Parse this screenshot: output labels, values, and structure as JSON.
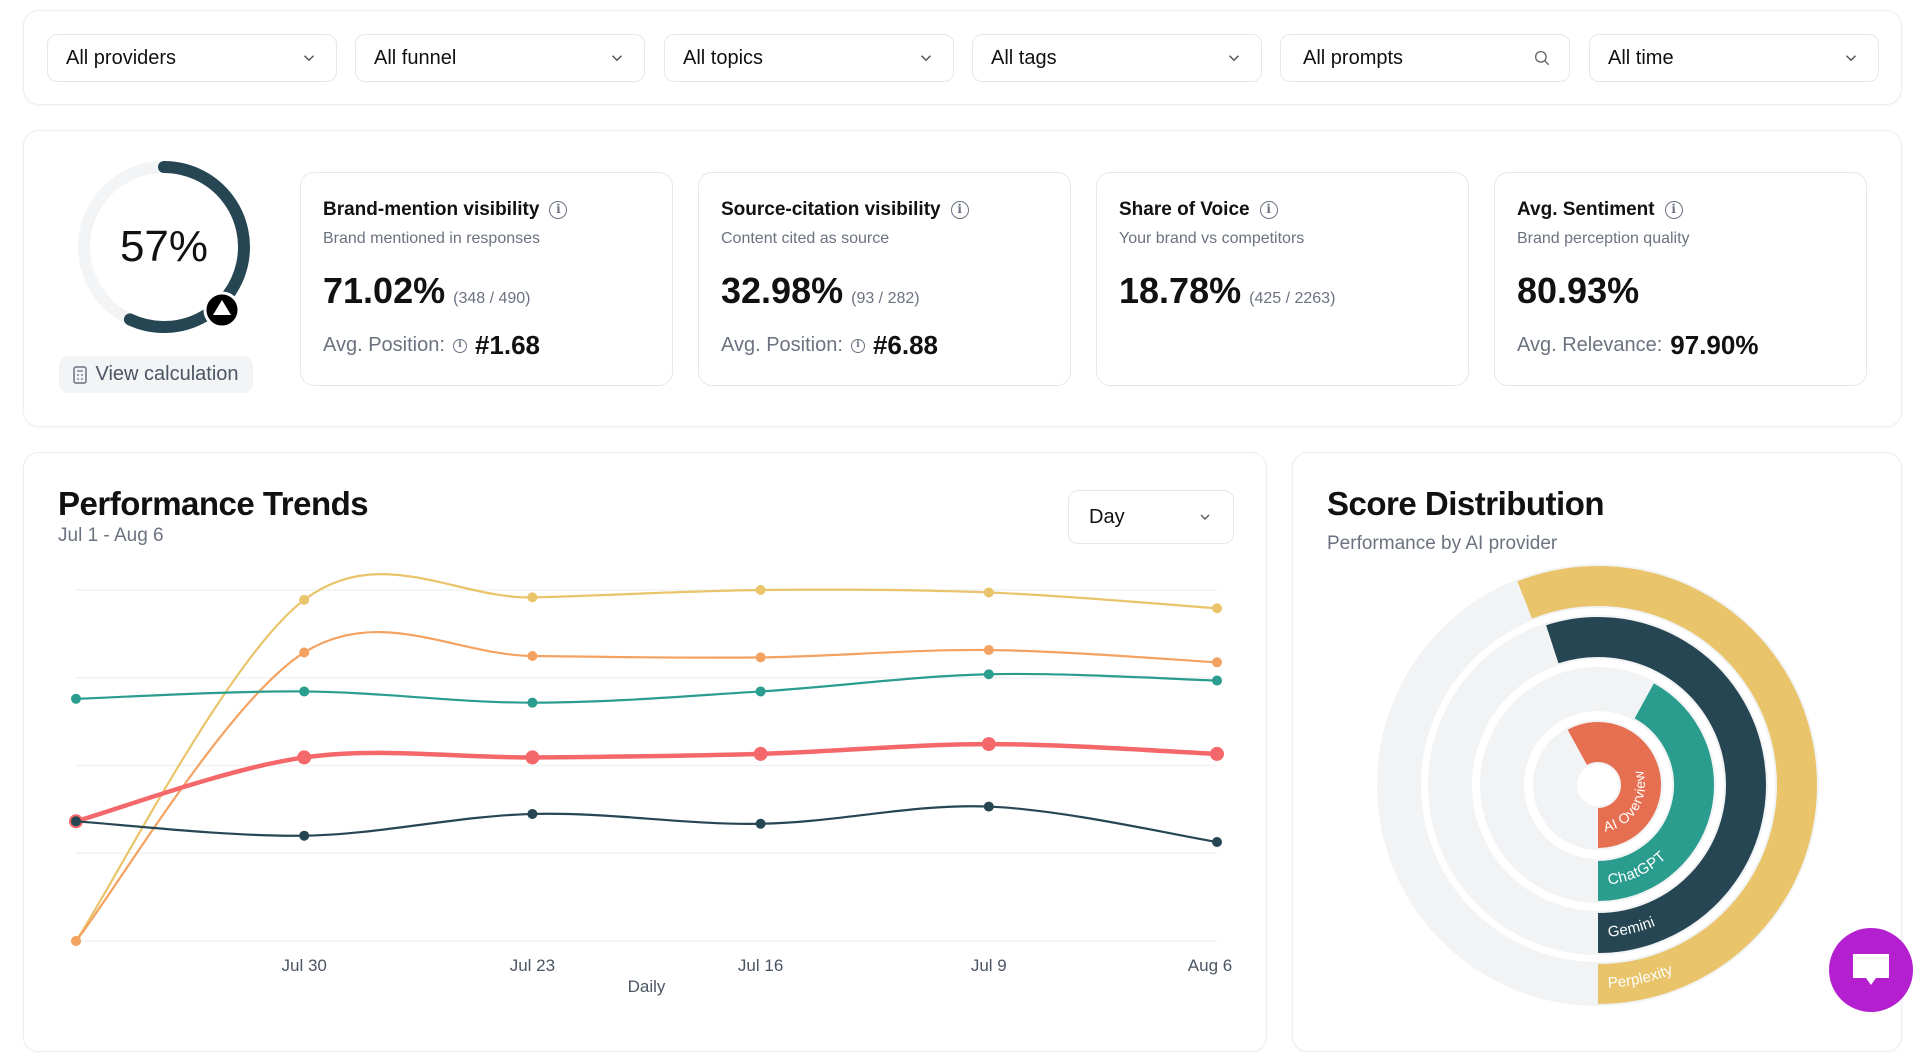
{
  "filters": [
    {
      "label": "All providers",
      "icon": "chevron-down-icon"
    },
    {
      "label": "All funnel",
      "icon": "chevron-down-icon"
    },
    {
      "label": "All topics",
      "icon": "chevron-down-icon"
    },
    {
      "label": "All tags",
      "icon": "chevron-down-icon"
    },
    {
      "label": "All prompts",
      "icon": "search-icon"
    },
    {
      "label": "All time",
      "icon": "chevron-down-icon"
    }
  ],
  "overall": {
    "score_text": "57%",
    "score": 57,
    "view_calc": "View calculation",
    "color": "#264653"
  },
  "metrics": [
    {
      "title": "Brand-mention visibility",
      "subtitle": "Brand mentioned in responses",
      "value": "71.02%",
      "ratio": "(348 / 490)",
      "avg_label": "Avg. Position:",
      "avg_value": "#1.68",
      "avg_info": true
    },
    {
      "title": "Source-citation visibility",
      "subtitle": "Content cited as source",
      "value": "32.98%",
      "ratio": "(93 / 282)",
      "avg_label": "Avg. Position:",
      "avg_value": "#6.88",
      "avg_info": true
    },
    {
      "title": "Share of Voice",
      "subtitle": "Your brand vs competitors",
      "value": "18.78%",
      "ratio": "(425 / 2263)"
    },
    {
      "title": "Avg. Sentiment",
      "subtitle": "Brand perception quality",
      "value": "80.93%",
      "avg_label": "Avg. Relevance:",
      "avg_value": "97.90%",
      "avg_info": false
    }
  ],
  "trends": {
    "title": "Performance Trends",
    "subtitle": "Jul 1 - Aug 6",
    "granularity": "Day"
  },
  "score": {
    "title": "Score Distribution",
    "subtitle": "Performance by AI provider"
  },
  "chart_data": [
    {
      "type": "line",
      "xlabel": "Daily",
      "categories": [
        "",
        "Jul 30",
        "Jul 23",
        "Jul 16",
        "Jul 9",
        "Aug 6"
      ],
      "ylim": [
        0,
        100
      ],
      "grid": true,
      "series": [
        {
          "color": "#e9c46a",
          "values": [
            0,
            97.2,
            97.9,
            100,
            99.3,
            94.8
          ]
        },
        {
          "color": "#f4a261",
          "values": [
            0,
            82.2,
            81.2,
            80.8,
            82.9,
            79.4
          ]
        },
        {
          "color": "#2a9d8f",
          "values": [
            69,
            71.1,
            67.9,
            71.1,
            76,
            74.2
          ]
        },
        {
          "color": "#f4676a",
          "values": [
            34.1,
            52.3,
            52.3,
            53.3,
            56.1,
            53.3
          ]
        },
        {
          "color": "#264653",
          "values": [
            34.1,
            30,
            36.2,
            33.4,
            38.3,
            28.2
          ]
        }
      ]
    },
    {
      "type": "radial-bar",
      "categories": [
        "AI Overview",
        "ChatGPT",
        "Gemini",
        "Perplexity"
      ],
      "values": [
        58,
        42,
        55,
        56
      ],
      "colors": [
        "#e76f51",
        "#2a9d8f",
        "#264653",
        "#e9c46a"
      ]
    }
  ]
}
